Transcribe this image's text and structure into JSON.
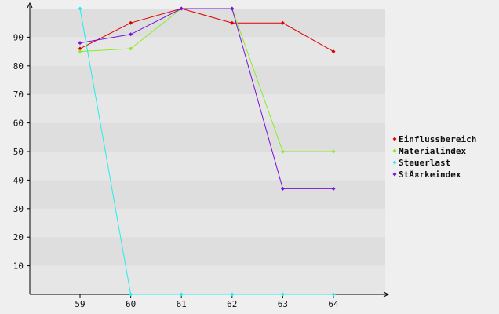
{
  "chart_data": {
    "type": "line",
    "title": "",
    "xlabel": "",
    "ylabel": "",
    "categories": [
      "59",
      "60",
      "61",
      "62",
      "63",
      "64"
    ],
    "y_ticks": [
      10,
      20,
      30,
      40,
      50,
      60,
      70,
      80,
      90
    ],
    "ylim": [
      0,
      100
    ],
    "grid": "alternating horizontal bands",
    "legend_position": "right",
    "series": [
      {
        "name": "Einflussbereich",
        "color": "#dd0000",
        "values": [
          86,
          95,
          100,
          95,
          95,
          85
        ]
      },
      {
        "name": "Materialindex",
        "color": "#88ee22",
        "values": [
          85,
          86,
          100,
          100,
          50,
          50
        ]
      },
      {
        "name": "Steuerlast",
        "color": "#22eeee",
        "values": [
          100,
          0,
          0,
          0,
          0,
          0
        ]
      },
      {
        "name": "StÃ¤rkeindex",
        "color": "#7711dd",
        "values": [
          88,
          91,
          100,
          100,
          37,
          37
        ]
      }
    ]
  }
}
